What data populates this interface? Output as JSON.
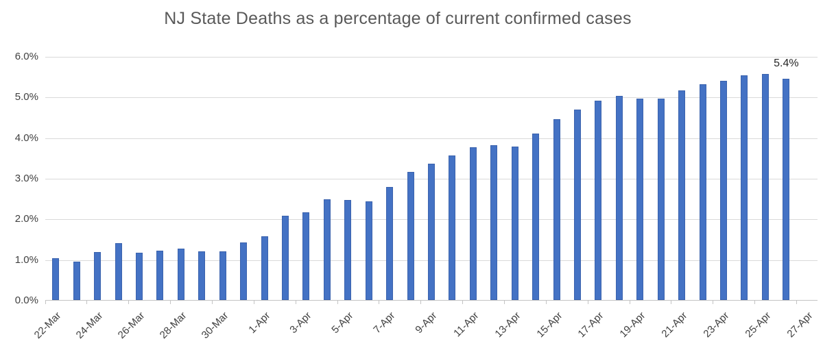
{
  "chart_data": {
    "type": "bar",
    "title": "NJ State Deaths as a percentage of current confirmed cases",
    "categories": [
      "22-Mar",
      "23-Mar",
      "24-Mar",
      "25-Mar",
      "26-Mar",
      "27-Mar",
      "28-Mar",
      "29-Mar",
      "30-Mar",
      "31-Mar",
      "1-Apr",
      "2-Apr",
      "3-Apr",
      "4-Apr",
      "5-Apr",
      "6-Apr",
      "7-Apr",
      "8-Apr",
      "9-Apr",
      "10-Apr",
      "11-Apr",
      "12-Apr",
      "13-Apr",
      "14-Apr",
      "15-Apr",
      "16-Apr",
      "17-Apr",
      "18-Apr",
      "19-Apr",
      "20-Apr",
      "21-Apr",
      "22-Apr",
      "23-Apr",
      "24-Apr",
      "25-Apr",
      "26-Apr",
      "27-Apr"
    ],
    "values": [
      1.03,
      0.94,
      1.18,
      1.4,
      1.17,
      1.21,
      1.26,
      1.19,
      1.19,
      1.42,
      1.57,
      2.08,
      2.16,
      2.48,
      2.46,
      2.43,
      2.78,
      3.16,
      3.35,
      3.55,
      3.76,
      3.81,
      3.78,
      4.1,
      4.45,
      4.68,
      4.91,
      5.02,
      4.95,
      4.95,
      5.16,
      5.31,
      5.39,
      5.53,
      5.56,
      5.44,
      null
    ],
    "values_unit": "%",
    "x_tick_labels": [
      "22-Mar",
      "24-Mar",
      "26-Mar",
      "28-Mar",
      "30-Mar",
      "1-Apr",
      "3-Apr",
      "5-Apr",
      "7-Apr",
      "9-Apr",
      "11-Apr",
      "13-Apr",
      "15-Apr",
      "17-Apr",
      "19-Apr",
      "21-Apr",
      "23-Apr",
      "25-Apr",
      "27-Apr"
    ],
    "y_tick_labels": [
      "0.0%",
      "1.0%",
      "2.0%",
      "3.0%",
      "4.0%",
      "5.0%",
      "6.0%"
    ],
    "ylim": [
      0,
      6
    ],
    "grid": true,
    "legend": false,
    "annotation": {
      "text": "5.4%",
      "category": "26-Apr"
    },
    "colors": {
      "bar_fill": "#4472c4",
      "bar_border": "#3a62ad",
      "gridline": "#d9d9d9",
      "axis_line": "#c3c3c3",
      "title_text": "#595959",
      "axis_text": "#404040",
      "data_label_text": "#262626"
    }
  }
}
